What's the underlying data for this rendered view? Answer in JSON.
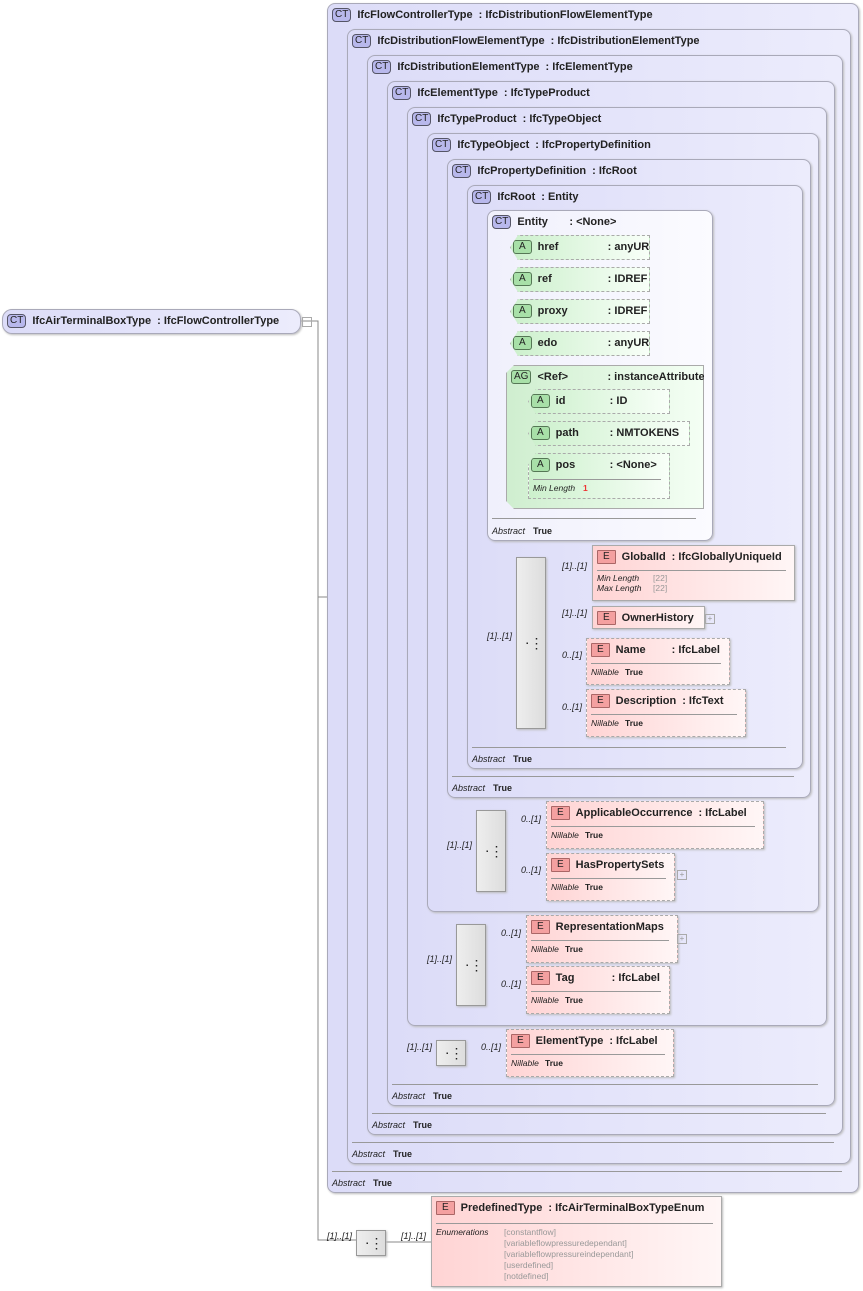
{
  "root": {
    "badge": "CT",
    "name": "IfcAirTerminalBoxType",
    "type": ": IfcFlowControllerType"
  },
  "types": [
    {
      "badge": "CT",
      "name": "IfcFlowControllerType",
      "type": ": IfcDistributionFlowElementType",
      "abstract_label": "Abstract",
      "abstract": "True"
    },
    {
      "badge": "CT",
      "name": "IfcDistributionFlowElementType",
      "type": ": IfcDistributionElementType",
      "abstract_label": "Abstract",
      "abstract": "True"
    },
    {
      "badge": "CT",
      "name": "IfcDistributionElementType",
      "type": ": IfcElementType",
      "abstract_label": "Abstract",
      "abstract": "True"
    },
    {
      "badge": "CT",
      "name": "IfcElementType",
      "type": ": IfcTypeProduct",
      "abstract_label": "Abstract",
      "abstract": "True"
    },
    {
      "badge": "CT",
      "name": "IfcTypeProduct",
      "type": ": IfcTypeObject"
    },
    {
      "badge": "CT",
      "name": "IfcTypeObject",
      "type": ": IfcPropertyDefinition"
    },
    {
      "badge": "CT",
      "name": "IfcPropertyDefinition",
      "type": ": IfcRoot",
      "abstract_label": "Abstract",
      "abstract": "True"
    },
    {
      "badge": "CT",
      "name": "IfcRoot",
      "type": ": Entity",
      "abstract_label": "Abstract",
      "abstract": "True"
    },
    {
      "badge": "CT",
      "name": "Entity",
      "type": ": <None>",
      "abstract_label": "Abstract",
      "abstract": "True"
    }
  ],
  "attributes": [
    {
      "badge": "A",
      "name": "href",
      "type": ": anyURI"
    },
    {
      "badge": "A",
      "name": "ref",
      "type": ": IDREF"
    },
    {
      "badge": "A",
      "name": "proxy",
      "type": ": IDREF"
    },
    {
      "badge": "A",
      "name": "edo",
      "type": ": anyURI"
    }
  ],
  "attribute_group": {
    "badge": "AG",
    "name": "<Ref>",
    "type": ": instanceAttributes",
    "attributes": [
      {
        "badge": "A",
        "name": "id",
        "type": ": ID"
      },
      {
        "badge": "A",
        "name": "path",
        "type": ": NMTOKENS"
      },
      {
        "badge": "A",
        "name": "pos",
        "type": ": <None>",
        "facet_label": "Min Length",
        "facet": "1"
      }
    ]
  },
  "elements": {
    "globalid": {
      "badge": "E",
      "name": "GlobalId",
      "type": ": IfcGloballyUniqueId",
      "card": "[1]..[1]",
      "min_label": "Min Length",
      "min": "[22]",
      "max_label": "Max Length",
      "max": "[22]"
    },
    "ownerhistory": {
      "badge": "E",
      "name": "OwnerHistory",
      "card": "[1]..[1]"
    },
    "name": {
      "badge": "E",
      "name": "Name",
      "type": ": IfcLabel",
      "card": "0..[1]",
      "nil_label": "Nillable",
      "nil": "True"
    },
    "description": {
      "badge": "E",
      "name": "Description",
      "type": ": IfcText",
      "card": "0..[1]",
      "nil_label": "Nillable",
      "nil": "True"
    },
    "applicable": {
      "badge": "E",
      "name": "ApplicableOccurrence",
      "type": ": IfcLabel",
      "card": "0..[1]",
      "nil_label": "Nillable",
      "nil": "True"
    },
    "haspsets": {
      "badge": "E",
      "name": "HasPropertySets",
      "card": "0..[1]",
      "nil_label": "Nillable",
      "nil": "True"
    },
    "repmaps": {
      "badge": "E",
      "name": "RepresentationMaps",
      "card": "0..[1]",
      "nil_label": "Nillable",
      "nil": "True"
    },
    "tag": {
      "badge": "E",
      "name": "Tag",
      "type": ": IfcLabel",
      "card": "0..[1]",
      "nil_label": "Nillable",
      "nil": "True"
    },
    "elementtype": {
      "badge": "E",
      "name": "ElementType",
      "type": ": IfcLabel",
      "card": "0..[1]",
      "nil_label": "Nillable",
      "nil": "True"
    },
    "predefined": {
      "badge": "E",
      "name": "PredefinedType",
      "type": ": IfcAirTerminalBoxTypeEnum",
      "card": "[1]..[1]",
      "enum_label": "Enumerations",
      "enums": [
        "[constantflow]",
        "[variableflowpressuredependant]",
        "[variableflowpressureindependant]",
        "[userdefined]",
        "[notdefined]"
      ]
    }
  },
  "seq_cards": {
    "root": "[1]..[1]",
    "typeobject": "[1]..[1]",
    "typeproduct": "[1]..[1]",
    "elementtype": "[1]..[1]",
    "bottom": "[1]..[1]"
  }
}
